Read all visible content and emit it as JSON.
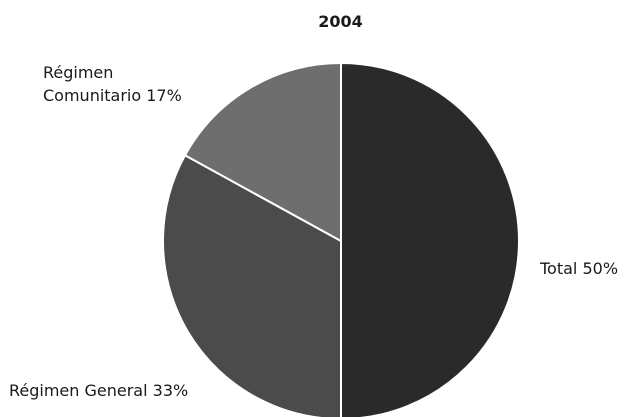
{
  "chart_data": {
    "type": "pie",
    "title": "2004",
    "slices": [
      {
        "label": "Total",
        "value": 50,
        "display": "Total 50%",
        "color": "#2a2a2a"
      },
      {
        "label": "Régimen General",
        "value": 33,
        "display": "Régimen General 33%",
        "color": "#4b4b4b"
      },
      {
        "label": "Régimen Comunitario",
        "value": 17,
        "display_line1": "Régimen",
        "display_line2": "Comunitario 17%",
        "color": "#6e6e6e"
      }
    ],
    "legend": "none"
  }
}
